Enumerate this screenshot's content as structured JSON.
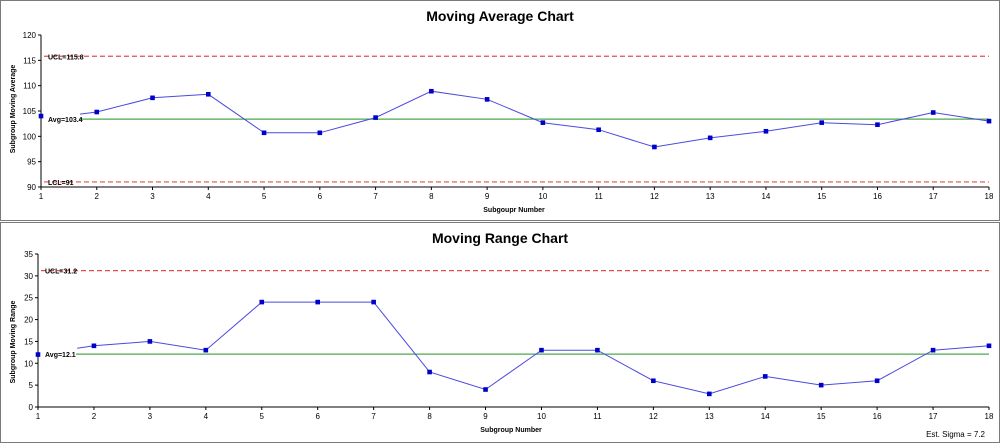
{
  "chart_data": [
    {
      "type": "line",
      "title": "Moving Average Chart",
      "xlabel": "Subgoupr Number",
      "ylabel": "Subgroup Moving Average",
      "x": [
        1,
        2,
        3,
        4,
        5,
        6,
        7,
        8,
        9,
        10,
        11,
        12,
        13,
        14,
        15,
        16,
        17,
        18
      ],
      "values": [
        104,
        104.8,
        107.6,
        108.3,
        100.7,
        100.7,
        103.7,
        108.9,
        107.3,
        102.7,
        101.3,
        97.9,
        99.7,
        101.0,
        102.7,
        102.3,
        104.7,
        103.0
      ],
      "connect_from": 2,
      "ylim": [
        90,
        120
      ],
      "yticks": [
        90,
        95,
        100,
        105,
        110,
        115,
        120
      ],
      "ucl": 115.8,
      "avg": 103.4,
      "lcl": 91,
      "ucl_label": "UCL=115.8",
      "avg_label": "Avg=103.4",
      "lcl_label": "LCL=91",
      "colors": {
        "series": "#4a4ae0",
        "marker": "#0000cc",
        "limit": "#e05050",
        "avg": "#4ca84c"
      }
    },
    {
      "type": "line",
      "title": "Moving Range Chart",
      "xlabel": "Subgroup Number",
      "ylabel": "Subgroup Moving Range",
      "x": [
        1,
        2,
        3,
        4,
        5,
        6,
        7,
        8,
        9,
        10,
        11,
        12,
        13,
        14,
        15,
        16,
        17,
        18
      ],
      "values": [
        12,
        14,
        15,
        13,
        24,
        24,
        24,
        8,
        4,
        13,
        13,
        6,
        3,
        7,
        5,
        6,
        13,
        14
      ],
      "connect_from": 2,
      "ylim": [
        0,
        35
      ],
      "yticks": [
        0,
        5,
        10,
        15,
        20,
        25,
        30,
        35
      ],
      "ucl": 31.2,
      "avg": 12.1,
      "lcl": null,
      "ucl_label": "UCL=31.2",
      "avg_label": "Avg=12.1",
      "lcl_label": "",
      "colors": {
        "series": "#4a4ae0",
        "marker": "#0000cc",
        "limit": "#e05050",
        "avg": "#4ca84c"
      }
    }
  ],
  "sigma_text": "Est. Sigma = 7.2"
}
